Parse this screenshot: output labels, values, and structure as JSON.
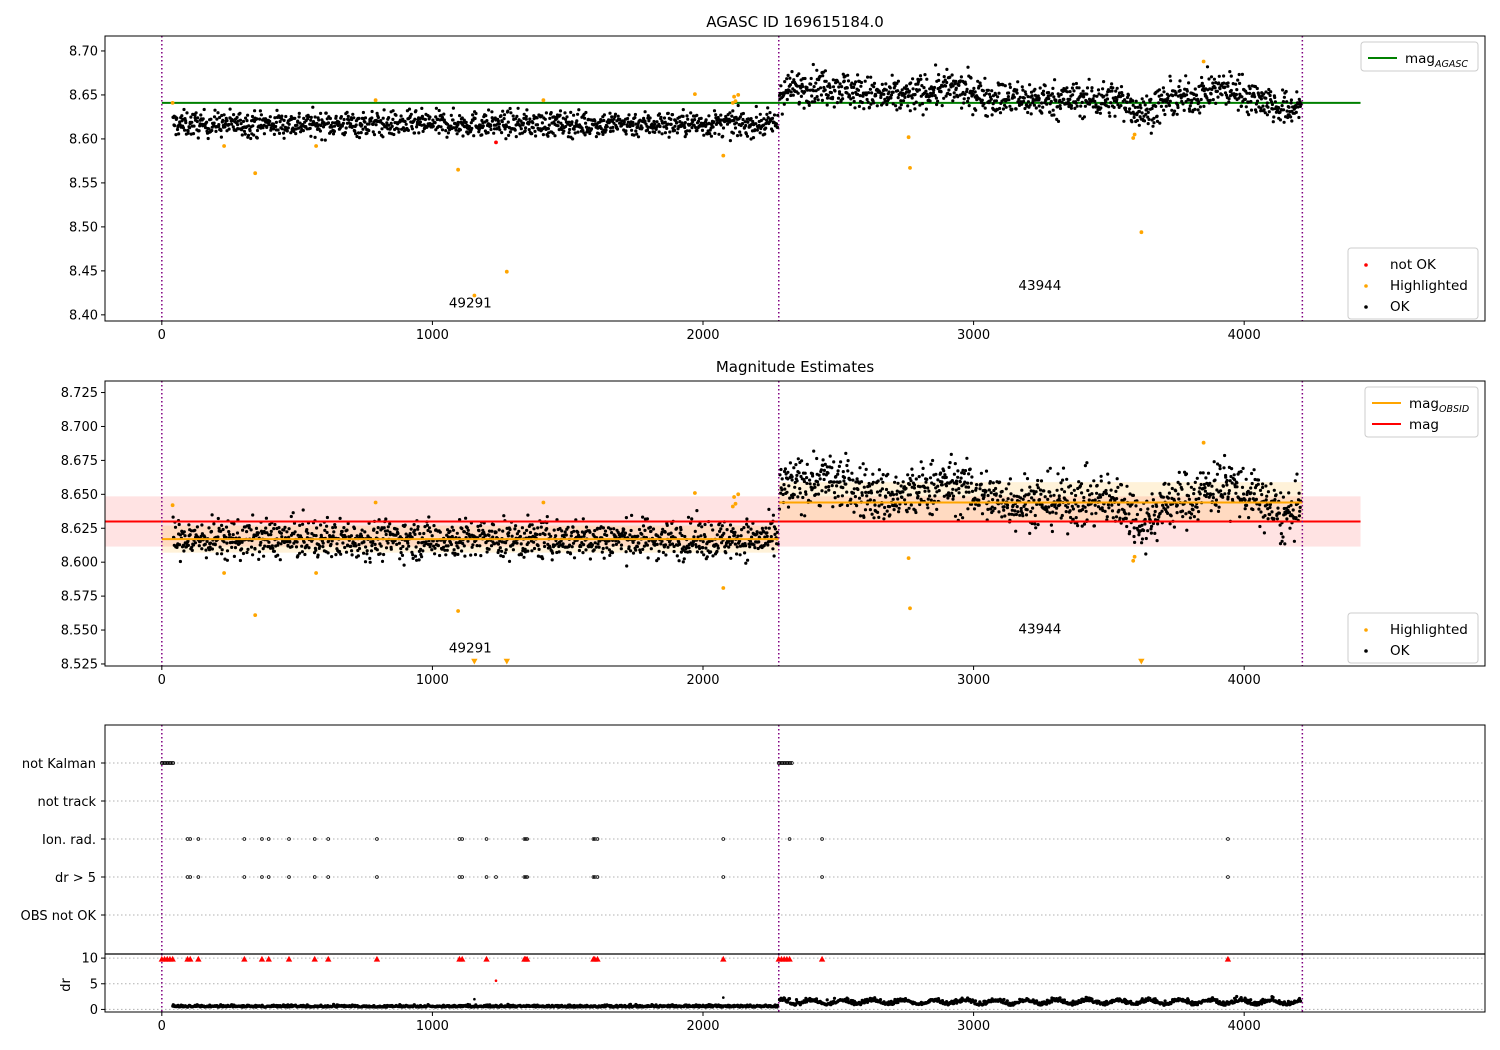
{
  "chart_data": [
    {
      "type": "scatter",
      "title": "AGASC ID 169615184.0",
      "xlabel": "",
      "ylabel": "",
      "xlim": [
        -210,
        4890
      ],
      "ylim": [
        8.393,
        8.717
      ],
      "xticks": [
        0,
        1000,
        2000,
        3000,
        4000
      ],
      "xtick_labels": [
        "0",
        "1000",
        "2000",
        "3000",
        "4000"
      ],
      "yticks": [
        8.4,
        8.45,
        8.5,
        8.55,
        8.6,
        8.65,
        8.7
      ],
      "ytick_labels": [
        "8.40",
        "8.45",
        "8.50",
        "8.55",
        "8.60",
        "8.65",
        "8.70"
      ],
      "obsid_boundaries": [
        0,
        2280,
        4215
      ],
      "obsid_labels": [
        {
          "text": "49291",
          "x": 1140,
          "y": 8.4085
        },
        {
          "text": "43944",
          "x": 3245,
          "y": 8.4285
        }
      ],
      "reference_lines": [
        {
          "name": "mag",
          "sub": "AGASC",
          "value": 8.641,
          "x_range": [
            0,
            4430
          ],
          "color": "#008000"
        }
      ],
      "series": [
        {
          "name": "not OK",
          "color": "#ff0000",
          "points": [
            [
              1235,
              8.596
            ]
          ]
        },
        {
          "name": "Highlighted",
          "color": "#ffa500",
          "points": [
            [
              40,
              8.641
            ],
            [
              230,
              8.592
            ],
            [
              345,
              8.561
            ],
            [
              570,
              8.592
            ],
            [
              790,
              8.644
            ],
            [
              1095,
              8.565
            ],
            [
              1155,
              8.422
            ],
            [
              1275,
              8.449
            ],
            [
              1410,
              8.644
            ],
            [
              1970,
              8.651
            ],
            [
              2075,
              8.581
            ],
            [
              2110,
              8.641
            ],
            [
              2115,
              8.648
            ],
            [
              2120,
              8.643
            ],
            [
              2130,
              8.65
            ],
            [
              2760,
              8.602
            ],
            [
              2765,
              8.567
            ],
            [
              3590,
              8.601
            ],
            [
              3595,
              8.605
            ],
            [
              3620,
              8.494
            ],
            [
              3850,
              8.688
            ]
          ]
        },
        {
          "name": "OK",
          "color": "#000000",
          "segments": [
            {
              "x_range": [
                40,
                2278
              ],
              "base": 8.617,
              "spread": 0.013,
              "n": 1250
            },
            {
              "x_range": [
                2282,
                4210
              ],
              "base": 8.645,
              "spread": 0.018,
              "n": 1100
            }
          ]
        }
      ],
      "legend_upper": [
        {
          "label": "mag",
          "sub": "AGASC",
          "color": "#008000"
        }
      ],
      "legend_lower": [
        {
          "label": "not OK",
          "color": "#ff0000"
        },
        {
          "label": "Highlighted",
          "color": "#ffa500"
        },
        {
          "label": "OK",
          "color": "#000000"
        }
      ]
    },
    {
      "type": "scatter",
      "title": "Magnitude Estimates",
      "xlabel": "",
      "ylabel": "",
      "xlim": [
        -210,
        4890
      ],
      "ylim": [
        8.5235,
        8.7335
      ],
      "xticks": [
        0,
        1000,
        2000,
        3000,
        4000
      ],
      "xtick_labels": [
        "0",
        "1000",
        "2000",
        "3000",
        "4000"
      ],
      "yticks": [
        8.525,
        8.55,
        8.575,
        8.6,
        8.625,
        8.65,
        8.675,
        8.7,
        8.725
      ],
      "ytick_labels": [
        "8.525",
        "8.550",
        "8.575",
        "8.600",
        "8.625",
        "8.650",
        "8.675",
        "8.700",
        "8.725"
      ],
      "obsid_boundaries": [
        0,
        2280,
        4215
      ],
      "obsid_labels": [
        {
          "text": "49291",
          "x": 1140,
          "y": 8.5335
        },
        {
          "text": "43944",
          "x": 3245,
          "y": 8.5475
        }
      ],
      "bands": [
        {
          "name": "mag",
          "low": 8.6115,
          "high": 8.6485,
          "x_range": [
            -210,
            4430
          ],
          "color": "#ff0000",
          "opacity": 0.11
        },
        {
          "name": "obsid 49291",
          "low": 8.607,
          "high": 8.627,
          "x_range": [
            0,
            2280
          ],
          "color": "#ffa500",
          "opacity": 0.15
        },
        {
          "name": "obsid 43944",
          "low": 8.63,
          "high": 8.659,
          "x_range": [
            2280,
            4215
          ],
          "color": "#ffa500",
          "opacity": 0.15
        }
      ],
      "reference_lines": [
        {
          "name": "mag",
          "value": 8.63,
          "x_range": [
            -210,
            4430
          ],
          "color": "#ff0000"
        },
        {
          "name": "mag OBSID 49291",
          "value": 8.617,
          "x_range": [
            0,
            2280
          ],
          "color": "#ffa500"
        },
        {
          "name": "mag OBSID 43944",
          "value": 8.644,
          "x_range": [
            2280,
            4215
          ],
          "color": "#ffa500"
        }
      ],
      "series": [
        {
          "name": "Highlighted",
          "color": "#ffa500",
          "points": [
            [
              40,
              8.642
            ],
            [
              230,
              8.592
            ],
            [
              345,
              8.561
            ],
            [
              570,
              8.592
            ],
            [
              790,
              8.644
            ],
            [
              1095,
              8.564
            ],
            [
              1410,
              8.644
            ],
            [
              1970,
              8.651
            ],
            [
              2075,
              8.581
            ],
            [
              2110,
              8.641
            ],
            [
              2115,
              8.648
            ],
            [
              2120,
              8.643
            ],
            [
              2130,
              8.65
            ],
            [
              2760,
              8.603
            ],
            [
              2765,
              8.566
            ],
            [
              3590,
              8.601
            ],
            [
              3595,
              8.604
            ],
            [
              3850,
              8.688
            ]
          ]
        },
        {
          "name": "Highlighted (clipped)",
          "color": "#ffa500",
          "marker": "triangle-down",
          "points": [
            [
              1155,
              8.527
            ],
            [
              1275,
              8.527
            ],
            [
              3620,
              8.527
            ]
          ]
        },
        {
          "name": "OK",
          "color": "#000000",
          "segments": [
            {
              "x_range": [
                40,
                2278
              ],
              "base": 8.617,
              "spread": 0.013,
              "n": 1250
            },
            {
              "x_range": [
                2282,
                4210
              ],
              "base": 8.645,
              "spread": 0.018,
              "n": 1100
            }
          ]
        }
      ],
      "legend_upper": [
        {
          "label": "mag",
          "sub": "OBSID",
          "color": "#ffa500"
        },
        {
          "label": "mag",
          "color": "#ff0000"
        }
      ],
      "legend_lower": [
        {
          "label": "Highlighted",
          "color": "#ffa500"
        },
        {
          "label": "OK",
          "color": "#000000"
        }
      ]
    },
    {
      "type": "scatter",
      "title": "",
      "xlabel": "",
      "ylabel": "",
      "xlim": [
        -210,
        4890
      ],
      "categories": [
        "not Kalman",
        "not track",
        "Ion. rad.",
        "dr > 5",
        "OBS not OK"
      ],
      "obsid_boundaries": [
        0,
        2280,
        4215
      ],
      "flags": {
        "not Kalman": [
          [
            0,
            45
          ],
          [
            2280,
            2330
          ]
        ],
        "not track": [],
        "Ion. rad.": [
          95,
          105,
          135,
          305,
          370,
          395,
          470,
          565,
          615,
          795,
          1100,
          1110,
          1200,
          1340,
          1345,
          1350,
          1595,
          1600,
          1610,
          2075,
          2320,
          2440,
          3940
        ],
        "dr > 5": [
          95,
          105,
          135,
          305,
          370,
          395,
          470,
          565,
          615,
          795,
          1100,
          1110,
          1200,
          1235,
          1340,
          1345,
          1350,
          1595,
          1600,
          1610,
          2075,
          2440,
          3940
        ],
        "OBS not OK": []
      }
    },
    {
      "type": "scatter",
      "title": "",
      "xlabel": "",
      "ylabel": "dr",
      "xlim": [
        -210,
        4890
      ],
      "ylim": [
        -0.5,
        10.8
      ],
      "xticks": [
        0,
        1000,
        2000,
        3000,
        4000
      ],
      "xtick_labels": [
        "0",
        "1000",
        "2000",
        "3000",
        "4000"
      ],
      "yticks": [
        0,
        5,
        10
      ],
      "ytick_labels": [
        "0",
        "5",
        "10"
      ],
      "obsid_boundaries": [
        0,
        2280,
        4215
      ],
      "series": [
        {
          "name": "OK",
          "color": "#000000",
          "segments": [
            {
              "x_range": [
                40,
                2278
              ],
              "base": 0.45,
              "spread": 0.3,
              "n": 900
            },
            {
              "x_range": [
                2282,
                4210
              ],
              "base": 1.2,
              "spread": 0.55,
              "n": 800
            }
          ],
          "extra_points": [
            [
              1155,
              2.0
            ],
            [
              2075,
              2.3
            ]
          ]
        },
        {
          "name": "not OK",
          "color": "#ff0000",
          "points": [
            [
              1235,
              5.6
            ]
          ]
        },
        {
          "name": "clipped",
          "color": "#ff0000",
          "marker": "triangle-up",
          "points": [
            [
              0,
              10
            ],
            [
              10,
              10
            ],
            [
              20,
              10
            ],
            [
              30,
              10
            ],
            [
              40,
              10
            ],
            [
              95,
              10
            ],
            [
              105,
              10
            ],
            [
              135,
              10
            ],
            [
              305,
              10
            ],
            [
              370,
              10
            ],
            [
              395,
              10
            ],
            [
              470,
              10
            ],
            [
              565,
              10
            ],
            [
              615,
              10
            ],
            [
              795,
              10
            ],
            [
              1100,
              10
            ],
            [
              1110,
              10
            ],
            [
              1200,
              10
            ],
            [
              1340,
              10
            ],
            [
              1345,
              10
            ],
            [
              1350,
              10
            ],
            [
              1595,
              10
            ],
            [
              1600,
              10
            ],
            [
              1610,
              10
            ],
            [
              2075,
              10
            ],
            [
              2280,
              10
            ],
            [
              2290,
              10
            ],
            [
              2300,
              10
            ],
            [
              2310,
              10
            ],
            [
              2320,
              10
            ],
            [
              2440,
              10
            ],
            [
              3940,
              10
            ]
          ]
        }
      ]
    }
  ]
}
